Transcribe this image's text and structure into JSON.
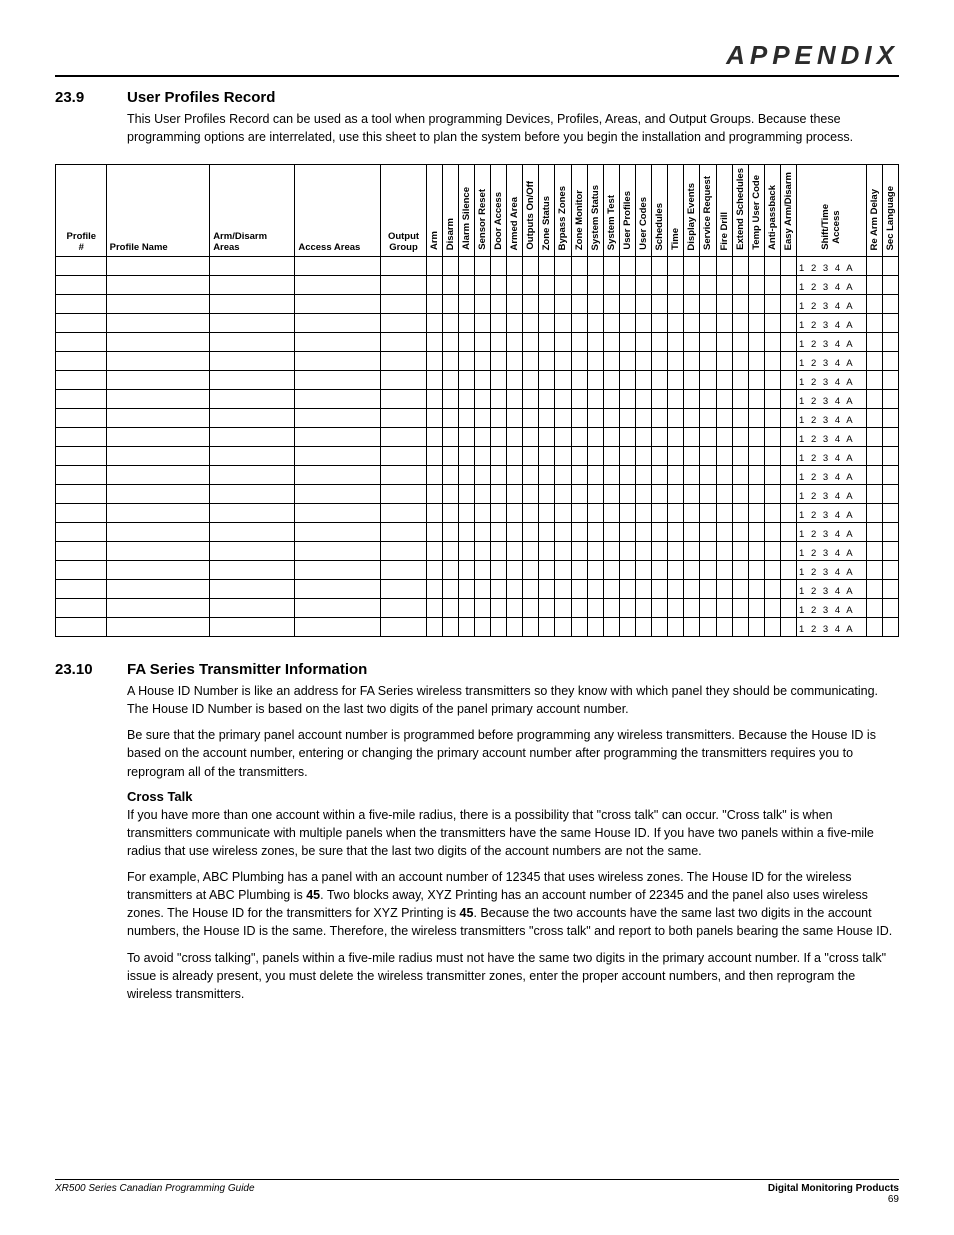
{
  "header": {
    "appendix": "APPENDIX"
  },
  "section1": {
    "num": "23.9",
    "title": "User Profiles Record",
    "text": "This User Profiles Record can be used as a tool when programming Devices, Profiles, Areas, and Output Groups.  Because these programming options are interrelated, use this sheet to plan the system before you begin the installation and programming process."
  },
  "table": {
    "horiz_headers": [
      "Profile #",
      "Profile Name",
      "Arm/Disarm Areas",
      "Access Areas",
      "Output Group"
    ],
    "vert_headers": [
      "Arm",
      "Disarm",
      "Alarm Silence",
      "Sensor Reset",
      "Door Access",
      "Armed Area",
      "Outputs On/Off",
      "Zone Status",
      "Bypass Zones",
      "Zone Monitor",
      "System Status",
      "System Test",
      "User Profiles",
      "User Codes",
      "Schedules",
      "Time",
      "Display Events",
      "Service Request",
      "Fire Drill",
      "Extend Schedules",
      "Temp User Code",
      "Anti-passback",
      "Easy Arm/Disarm"
    ],
    "shift_header": "Shift/Time Access",
    "trailing_vert": [
      "Re Arm Delay",
      "Sec Language"
    ],
    "shift_cell_text": "1 2 3 4 A",
    "num_rows": 20
  },
  "section2": {
    "num": "23.10",
    "title": "FA Series Transmitter Information",
    "p1": "A House ID Number is like an address for FA Series wireless transmitters so they know with which panel they should be communicating.  The House ID Number is based on the last two digits of the panel primary account number.",
    "p2": "Be sure that the primary panel account number is programmed before programming any wireless transmitters.  Because the House ID is based on the account number, entering or changing the primary account number after programming the transmitters requires you to reprogram all of the transmitters.",
    "sub": "Cross Talk",
    "p3": "If you have more than one account within a five-mile radius, there is a possibility that \"cross talk\" can occur.  \"Cross talk\" is when transmitters communicate with multiple panels when the transmitters have the same House ID.  If you have two panels within a five-mile radius that use wireless zones, be sure that the last two digits of the account numbers are not the same.",
    "p4_a": "For example, ABC Plumbing has a panel with an account number of 12345 that uses wireless zones.  The House ID for the wireless transmitters at ABC Plumbing is ",
    "p4_b45a": "45",
    "p4_b": ".  Two blocks away, XYZ Printing has an account number of 22345 and the panel also uses wireless zones.  The House ID for the transmitters for XYZ Printing is ",
    "p4_b45b": "45",
    "p4_c": ".  Because the two accounts have the same last two digits in the account numbers, the House ID is the same.  Therefore, the wireless transmitters \"cross talk\" and report to both panels bearing the same House ID.",
    "p5": "To avoid \"cross talking\", panels within a five-mile radius must not have the same two digits in the primary account number.  If a \"cross talk\" issue is already present, you must delete the wireless transmitter zones, enter the proper account numbers, and then reprogram the wireless transmitters."
  },
  "footer": {
    "left": "XR500 Series Canadian Programming Guide",
    "right_name": "Digital Monitoring Products",
    "page": "69"
  }
}
